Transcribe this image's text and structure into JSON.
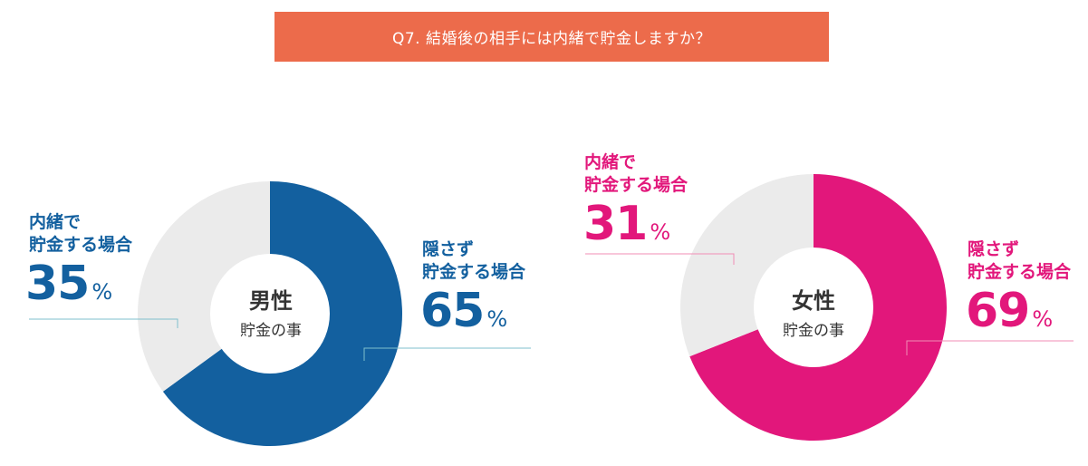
{
  "title": "Q7. 結婚後の相手には内緒で貯金しますか？",
  "colors": {
    "title_bg": "#ec6b4b",
    "male": "#13609f",
    "female": "#e2177b",
    "remainder": "#ebebeb",
    "male_leader": "#7fbfcc",
    "female_leader": "#f08cb4"
  },
  "chart_data": [
    {
      "type": "pie",
      "center_title": "男性",
      "center_subtitle": "貯金の事",
      "categories": [
        "隠さず貯金する場合",
        "内緒で貯金する場合"
      ],
      "values": [
        65,
        35
      ],
      "hide": {
        "line1": "隠さず",
        "line2": "貯金する場合",
        "pct": "65",
        "sign": "%"
      },
      "secret": {
        "line1": "内緒で",
        "line2": "貯金する場合",
        "pct": "35",
        "sign": "%"
      }
    },
    {
      "type": "pie",
      "center_title": "女性",
      "center_subtitle": "貯金の事",
      "categories": [
        "隠さず貯金する場合",
        "内緒で貯金する場合"
      ],
      "values": [
        69,
        31
      ],
      "hide": {
        "line1": "隠さず",
        "line2": "貯金する場合",
        "pct": "69",
        "sign": "%"
      },
      "secret": {
        "line1": "内緒で",
        "line2": "貯金する場合",
        "pct": "31",
        "sign": "%"
      }
    }
  ]
}
